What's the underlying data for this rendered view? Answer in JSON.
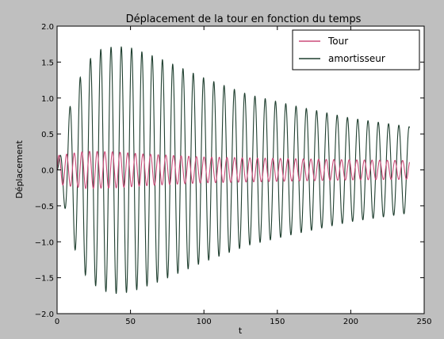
{
  "chart_data": {
    "type": "line",
    "title": "Déplacement de la tour en fonction du temps",
    "xlabel": "t",
    "ylabel": "Déplacement",
    "xlim": [
      0,
      250
    ],
    "ylim": [
      -2.0,
      2.0
    ],
    "x_ticks": [
      0,
      50,
      100,
      150,
      200,
      250
    ],
    "y_ticks": [
      -2.0,
      -1.5,
      -1.0,
      -0.5,
      0.0,
      0.5,
      1.0,
      1.5,
      2.0
    ],
    "x_tick_labels": [
      "0",
      "50",
      "100",
      "150",
      "200",
      "250"
    ],
    "y_tick_labels": [
      "−2.0",
      "−1.5",
      "−1.0",
      "−0.5",
      "0.0",
      "0.5",
      "1.0",
      "1.5",
      "2.0"
    ],
    "grid": false,
    "legend_position": "top-right",
    "series": [
      {
        "name": "Tour",
        "color": "#cc4c7a",
        "period": 5.2,
        "envelope": [
          [
            0,
            0.2
          ],
          [
            20,
            0.26
          ],
          [
            40,
            0.25
          ],
          [
            60,
            0.22
          ],
          [
            100,
            0.18
          ],
          [
            150,
            0.16
          ],
          [
            200,
            0.14
          ],
          [
            240,
            0.13
          ]
        ]
      },
      {
        "name": "amortisseur",
        "color": "#1f3f2f",
        "period": 7.0,
        "envelope": [
          [
            0,
            0.0
          ],
          [
            5,
            0.5
          ],
          [
            10,
            1.0
          ],
          [
            20,
            1.5
          ],
          [
            30,
            1.68
          ],
          [
            40,
            1.72
          ],
          [
            50,
            1.7
          ],
          [
            70,
            1.55
          ],
          [
            100,
            1.28
          ],
          [
            130,
            1.05
          ],
          [
            160,
            0.9
          ],
          [
            200,
            0.72
          ],
          [
            240,
            0.6
          ]
        ]
      }
    ]
  }
}
